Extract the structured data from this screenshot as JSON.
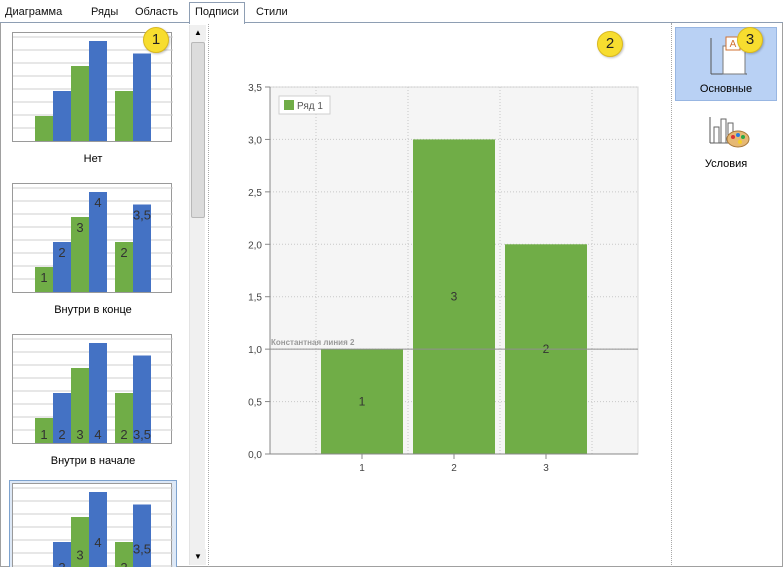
{
  "tabs": [
    {
      "label": "Диаграмма",
      "active": false
    },
    {
      "label": "Ряды",
      "active": false
    },
    {
      "label": "Область",
      "active": false
    },
    {
      "label": "Подписи",
      "active": true
    },
    {
      "label": "Стили",
      "active": false
    }
  ],
  "gallery": {
    "items": [
      {
        "label": "Нет",
        "label_style": "none",
        "selected": false
      },
      {
        "label": "Внутри в конце",
        "label_style": "inside-end",
        "selected": false
      },
      {
        "label": "Внутри в начале",
        "label_style": "inside-base",
        "selected": false
      },
      {
        "label": "",
        "label_style": "center",
        "selected": true
      }
    ],
    "thumb_data": {
      "groups": [
        [
          1,
          2
        ],
        [
          3,
          4
        ],
        [
          2,
          3.5
        ]
      ],
      "labels": [
        [
          "1",
          "2"
        ],
        [
          "3",
          "4"
        ],
        [
          "2",
          "3,5"
        ]
      ]
    }
  },
  "scroll_arrows": {
    "up": "▲",
    "down": "▼"
  },
  "preview": {
    "chart_data": {
      "type": "bar",
      "categories": [
        "1",
        "2",
        "3"
      ],
      "series": [
        {
          "name": "Ряд 1",
          "values": [
            1,
            3,
            2
          ],
          "data_labels": [
            "1",
            "3",
            "2"
          ]
        }
      ],
      "ylim": [
        0,
        3.5
      ],
      "yticks": [
        "0,0",
        "0,5",
        "1,0",
        "1,5",
        "2,0",
        "2,5",
        "3,0",
        "3,5"
      ],
      "constant_line": {
        "value": 1.0,
        "label": "Константная линия 2"
      },
      "grid": true,
      "legend": "top-left",
      "bar_color": "#70ad47"
    }
  },
  "right_panel": {
    "buttons": [
      {
        "label": "Основные",
        "active": true,
        "icon": "chart-label-icon"
      },
      {
        "label": "Условия",
        "active": false,
        "icon": "chart-palette-icon"
      }
    ]
  },
  "markers": [
    "1",
    "2",
    "3"
  ],
  "colors": {
    "green": "#70ad47",
    "blue": "#4472c4",
    "selected_bg": "#b9d1f4",
    "marker": "#f7dd2f"
  }
}
